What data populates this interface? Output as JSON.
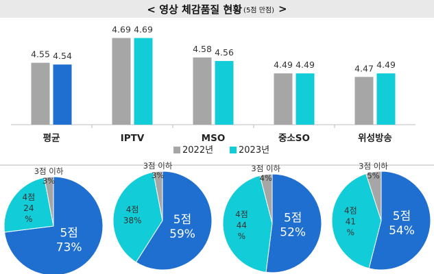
{
  "header": {
    "title": "< 영상 체감품질 현황",
    "note": "(5점 만점)",
    "close_mark": ">"
  },
  "colors": {
    "y2022": "#a6a6a6",
    "y2023_avg": "#1f6fd0",
    "y2023": "#12ccd8",
    "pie_top": "#1f6fd0",
    "pie_mid": "#12ccd8",
    "pie_low": "#a6a6a6",
    "divider": "#d0d0d0"
  },
  "chart_data": [
    {
      "type": "bar",
      "categories": [
        "평균",
        "IPTV",
        "MSO",
        "중소SO",
        "위성방송"
      ],
      "series": [
        {
          "name": "2022년",
          "values": [
            4.55,
            4.69,
            4.58,
            4.49,
            4.47
          ]
        },
        {
          "name": "2023년",
          "values": [
            4.54,
            4.69,
            4.56,
            4.49,
            4.49
          ]
        }
      ],
      "ylim": [
        4.2,
        4.75
      ],
      "grid": false,
      "legend_position": "bottom-center"
    },
    {
      "type": "pie",
      "charts": [
        {
          "slices": [
            {
              "label_a": "5점",
              "label_b": "73%",
              "value": 73
            },
            {
              "label_a": "4점",
              "label_b": "24",
              "label_c": "%",
              "value": 24
            },
            {
              "label_a": "3점 이하",
              "label_b": "3%",
              "value": 3
            }
          ]
        },
        {
          "slices": [
            {
              "label_a": "5점",
              "label_b": "59%",
              "value": 59
            },
            {
              "label_a": "4점",
              "label_b": "38%",
              "value": 38
            },
            {
              "label_a": "3점 이하",
              "label_b": "3%",
              "value": 3
            }
          ]
        },
        {
          "slices": [
            {
              "label_a": "5점",
              "label_b": "52%",
              "value": 52
            },
            {
              "label_a": "4점",
              "label_b": "44",
              "label_c": "%",
              "value": 44
            },
            {
              "label_a": "3점 이하",
              "label_b": "4%",
              "value": 4
            }
          ]
        },
        {
          "slices": [
            {
              "label_a": "5점",
              "label_b": "54%",
              "value": 54
            },
            {
              "label_a": "4점",
              "label_b": "41",
              "label_c": "%",
              "value": 41
            },
            {
              "label_a": "3점 이하",
              "label_b": "5%",
              "value": 5
            }
          ]
        }
      ]
    }
  ]
}
